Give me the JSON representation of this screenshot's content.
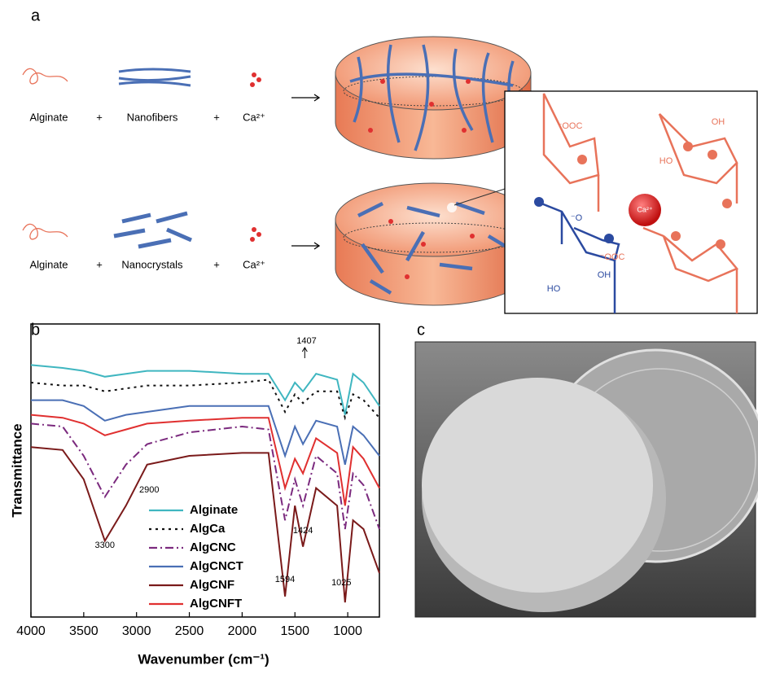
{
  "panel_a": {
    "label": "a",
    "row1": [
      "Alginate",
      "+",
      "Nanofibers",
      "+",
      "Ca²⁺"
    ],
    "row2": [
      "Alginate",
      "+",
      "Nanocrystals",
      "+",
      "Ca²⁺"
    ],
    "structure_labels": [
      "⁻OOC",
      "OH",
      "HO",
      "Ca²⁺",
      "⁻O",
      "⁻OOC",
      "HO",
      "OH"
    ]
  },
  "panel_b_label": "b",
  "panel_c_label": "c",
  "chart_data": {
    "type": "line",
    "xlabel": "Wavenumber (cm⁻¹)",
    "ylabel": "Transmittance",
    "x": [
      4000,
      3700,
      3500,
      3300,
      3100,
      2900,
      2500,
      2000,
      1750,
      1594,
      1500,
      1424,
      1300,
      1100,
      1025,
      950,
      850,
      700
    ],
    "xlim": [
      4000,
      700
    ],
    "xticks": [
      4000,
      3500,
      3000,
      2500,
      2000,
      1500,
      1000
    ],
    "ylim": [
      0,
      100
    ],
    "series": [
      {
        "name": "Alginate",
        "color": "#3fb6c0",
        "style": "solid",
        "values": [
          86,
          85,
          84,
          82,
          83,
          84,
          84,
          83,
          83,
          74,
          80,
          77,
          83,
          81,
          69,
          83,
          80,
          72
        ]
      },
      {
        "name": "AlgCa",
        "color": "#111111",
        "style": "dotted",
        "values": [
          80,
          79,
          79,
          77,
          78,
          79,
          79,
          80,
          81,
          70,
          76,
          73,
          77,
          77,
          68,
          76,
          74,
          68
        ]
      },
      {
        "name": "AlgCNC",
        "color": "#7b2a7e",
        "style": "dashdot",
        "values": [
          66,
          65,
          55,
          41,
          52,
          59,
          63,
          65,
          64,
          33,
          47,
          38,
          55,
          49,
          30,
          49,
          45,
          30
        ]
      },
      {
        "name": "AlgCNCT",
        "color": "#4a6fb5",
        "style": "solid",
        "values": [
          74,
          74,
          72,
          67,
          69,
          70,
          72,
          72,
          72,
          55,
          65,
          59,
          67,
          65,
          52,
          65,
          62,
          55
        ]
      },
      {
        "name": "AlgCNF",
        "color": "#7a1a1a",
        "style": "solid",
        "values": [
          58,
          57,
          47,
          26,
          38,
          52,
          55,
          56,
          56,
          7,
          38,
          24,
          44,
          38,
          5,
          33,
          30,
          15
        ]
      },
      {
        "name": "AlgCNFT",
        "color": "#e03030",
        "style": "solid",
        "values": [
          69,
          68,
          66,
          62,
          64,
          66,
          67,
          68,
          68,
          44,
          54,
          49,
          61,
          56,
          38,
          58,
          54,
          44
        ]
      }
    ],
    "annotations": [
      "1407",
      "2900",
      "3300",
      "1424",
      "1594",
      "1025"
    ]
  }
}
